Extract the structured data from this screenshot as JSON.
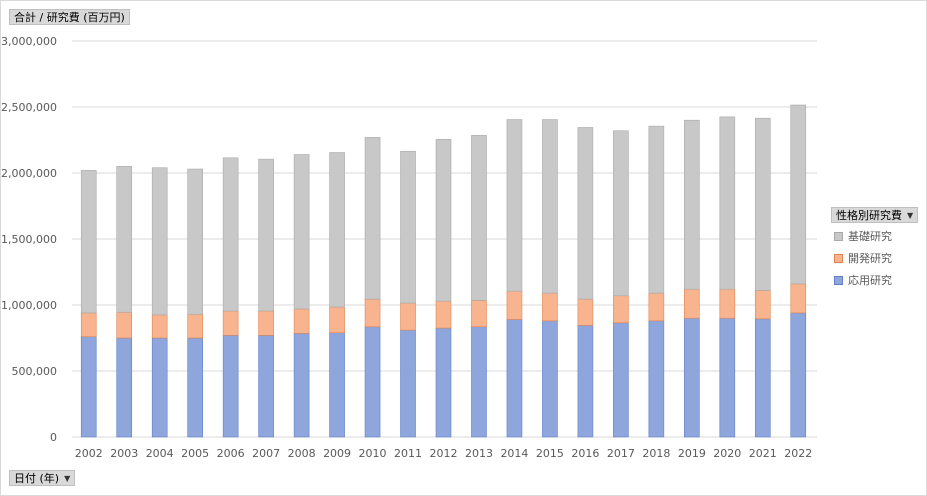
{
  "axis_field_label": "合計 / 研究費 (百万円)",
  "x_field_label": "日付 (年)",
  "legend_title": "性格別研究費",
  "dropdown_icon": "▼",
  "colors": {
    "basic": "#c8c8c8",
    "development": "#f7b48f",
    "applied": "#8fa6dc",
    "basic_border": "#a9a9a9",
    "development_border": "#e08552",
    "applied_border": "#5f7fc7",
    "grid": "#d9d9d9"
  },
  "chart_data": {
    "type": "bar",
    "stacked": true,
    "categories": [
      "2002",
      "2003",
      "2004",
      "2005",
      "2006",
      "2007",
      "2008",
      "2009",
      "2010",
      "2011",
      "2012",
      "2013",
      "2014",
      "2015",
      "2016",
      "2017",
      "2018",
      "2019",
      "2020",
      "2021",
      "2022"
    ],
    "series": [
      {
        "name": "応用研究",
        "key": "applied",
        "values": [
          760000,
          750000,
          750000,
          750000,
          770000,
          770000,
          785000,
          790000,
          835000,
          810000,
          825000,
          835000,
          890000,
          880000,
          845000,
          865000,
          880000,
          900000,
          900000,
          895000,
          940000
        ]
      },
      {
        "name": "開発研究",
        "key": "development",
        "values": [
          180000,
          195000,
          175000,
          180000,
          185000,
          185000,
          185000,
          195000,
          210000,
          205000,
          205000,
          200000,
          215000,
          210000,
          200000,
          205000,
          210000,
          220000,
          220000,
          215000,
          220000
        ]
      },
      {
        "name": "基礎研究",
        "key": "basic",
        "values": [
          1080000,
          1105000,
          1115000,
          1100000,
          1160000,
          1150000,
          1170000,
          1170000,
          1225000,
          1150000,
          1225000,
          1250000,
          1300000,
          1315000,
          1300000,
          1250000,
          1265000,
          1280000,
          1305000,
          1305000,
          1355000
        ]
      }
    ],
    "legend_order": [
      "基礎研究",
      "開発研究",
      "応用研究"
    ],
    "yticks": [
      "0",
      "500,000",
      "1,000,000",
      "1,500,000",
      "2,000,000",
      "2,500,000",
      "3,000,000"
    ],
    "ylim": [
      0,
      3000000
    ],
    "grid": true,
    "legend_position": "right"
  }
}
